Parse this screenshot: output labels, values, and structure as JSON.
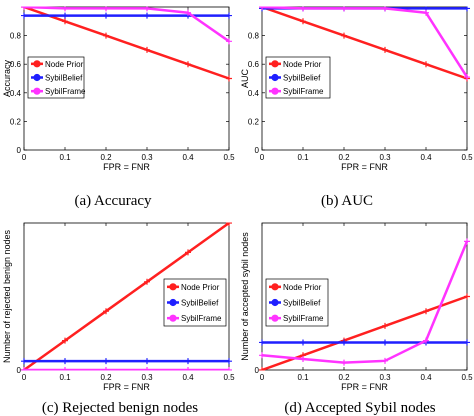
{
  "legend": [
    "Node Prior",
    "SybilBelief",
    "SybilFrame"
  ],
  "colors": {
    "Node Prior": "#ff2020",
    "SybilBelief": "#1f1fff",
    "SybilFrame": "#ff33ff"
  },
  "chart_data": [
    {
      "type": "line",
      "title": "",
      "caption": "(a) Accuracy",
      "xlabel": "FPR = FNR",
      "ylabel": "Accuracy",
      "x": [
        0,
        0.1,
        0.2,
        0.3,
        0.4,
        0.5
      ],
      "xticks": [
        "0",
        "0.1",
        "0.2",
        "0.3",
        "0.4",
        "0.5"
      ],
      "xlim": [
        0,
        0.5
      ],
      "ylim": [
        0,
        1
      ],
      "yticks": [
        0,
        0.2,
        0.4,
        0.6,
        0.8
      ],
      "yticklabels": [
        "0",
        "0.2",
        "0.4",
        "0.6",
        "0.8"
      ],
      "legend_position": "middle-left",
      "series": [
        {
          "name": "Node Prior",
          "values": [
            1.0,
            0.9,
            0.8,
            0.7,
            0.6,
            0.5
          ]
        },
        {
          "name": "SybilBelief",
          "values": [
            0.94,
            0.94,
            0.94,
            0.94,
            0.94,
            0.94
          ]
        },
        {
          "name": "SybilFrame",
          "values": [
            1.0,
            0.99,
            0.99,
            0.99,
            0.96,
            0.76
          ]
        }
      ]
    },
    {
      "type": "line",
      "title": "",
      "caption": "(b) AUC",
      "xlabel": "FPR = FNR",
      "ylabel": "AUC",
      "x": [
        0,
        0.1,
        0.2,
        0.3,
        0.4,
        0.5
      ],
      "xticks": [
        "0",
        "0.1",
        "0.2",
        "0.3",
        "0.4",
        "0.5"
      ],
      "xlim": [
        0,
        0.5
      ],
      "ylim": [
        0,
        1
      ],
      "yticks": [
        0,
        0.2,
        0.4,
        0.6,
        0.8
      ],
      "yticklabels": [
        "0",
        "0.2",
        "0.4",
        "0.6",
        "0.8"
      ],
      "legend_position": "middle-left",
      "series": [
        {
          "name": "Node Prior",
          "values": [
            1.0,
            0.9,
            0.8,
            0.7,
            0.6,
            0.5
          ]
        },
        {
          "name": "SybilBelief",
          "values": [
            0.99,
            0.99,
            0.99,
            0.99,
            0.99,
            0.99
          ]
        },
        {
          "name": "SybilFrame",
          "values": [
            1.0,
            0.99,
            0.99,
            0.99,
            0.96,
            0.51
          ]
        }
      ]
    },
    {
      "type": "line",
      "title": "",
      "caption": "(c) Rejected benign nodes",
      "xlabel": "FPR = FNR",
      "ylabel": "Number of rejected benign nodes",
      "x": [
        0,
        0.1,
        0.2,
        0.3,
        0.4,
        0.5
      ],
      "xticks": [
        "0",
        "0.1",
        "0.2",
        "0.3",
        "0.4",
        "0.5"
      ],
      "xlim": [
        0,
        0.5
      ],
      "ylim": [
        0,
        500
      ],
      "yticks": [
        0
      ],
      "yticklabels": [
        "0"
      ],
      "legend_position": "middle-right",
      "series": [
        {
          "name": "Node Prior",
          "values": [
            0,
            100,
            200,
            300,
            400,
            500
          ]
        },
        {
          "name": "SybilBelief",
          "values": [
            30,
            30,
            30,
            30,
            30,
            30
          ]
        },
        {
          "name": "SybilFrame",
          "values": [
            0,
            0,
            0,
            0,
            0,
            0
          ]
        }
      ]
    },
    {
      "type": "line",
      "title": "",
      "caption": "(d) Accepted Sybil nodes",
      "xlabel": "FPR = FNR",
      "ylabel": "Number of accepted sybil nodes",
      "x": [
        0,
        0.1,
        0.2,
        0.3,
        0.4,
        0.5
      ],
      "xticks": [
        "0",
        "0.1",
        "0.2",
        "0.3",
        "0.4",
        "0.5"
      ],
      "xlim": [
        0,
        0.5
      ],
      "ylim": [
        0,
        400
      ],
      "yticks": [
        0
      ],
      "yticklabels": [
        "0"
      ],
      "legend_position": "middle-left",
      "series": [
        {
          "name": "Node Prior",
          "values": [
            0,
            40,
            80,
            120,
            160,
            200
          ]
        },
        {
          "name": "SybilBelief",
          "values": [
            75,
            75,
            75,
            75,
            75,
            75
          ]
        },
        {
          "name": "SybilFrame",
          "values": [
            40,
            30,
            20,
            25,
            80,
            350
          ]
        }
      ]
    }
  ]
}
